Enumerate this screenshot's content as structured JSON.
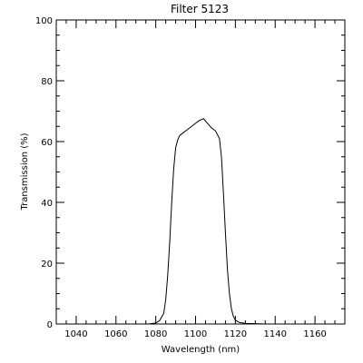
{
  "chart_data": {
    "type": "line",
    "title": "Filter 5123",
    "xlabel": "Wavelength (nm)",
    "ylabel": "Transmission (%)",
    "xlim": [
      1030,
      1175
    ],
    "ylim": [
      0,
      100
    ],
    "x_ticks": [
      1040,
      1060,
      1080,
      1100,
      1120,
      1140,
      1160
    ],
    "x_tick_labels": [
      "1040",
      "1060",
      "1080",
      "1100",
      "1120",
      "1140",
      "1160"
    ],
    "x_minor_step": 5,
    "y_ticks": [
      0,
      20,
      40,
      60,
      80,
      100
    ],
    "y_tick_labels": [
      "0",
      "20",
      "40",
      "60",
      "80",
      "100"
    ],
    "y_minor_step": 5,
    "grid": false,
    "line_color": "#000000",
    "series": [
      {
        "x": [
          1070,
          1076,
          1080,
          1082,
          1084,
          1085,
          1086,
          1087,
          1088,
          1089,
          1090,
          1091,
          1092,
          1094,
          1096,
          1098,
          1100,
          1102,
          1104,
          1106,
          1108,
          1110,
          1112,
          1113,
          1114,
          1115,
          1116,
          1117,
          1118,
          1119,
          1120,
          1122,
          1125,
          1130,
          1135
        ],
        "y": [
          0,
          0,
          0.3,
          1.2,
          3.5,
          8,
          16,
          27,
          40,
          51,
          58,
          60.5,
          62,
          63,
          64,
          65,
          66,
          67,
          67.5,
          66,
          64.5,
          63.5,
          61,
          55,
          43,
          30,
          18,
          10,
          5,
          2.5,
          1.2,
          0.5,
          0.2,
          0.1,
          0
        ]
      }
    ]
  }
}
